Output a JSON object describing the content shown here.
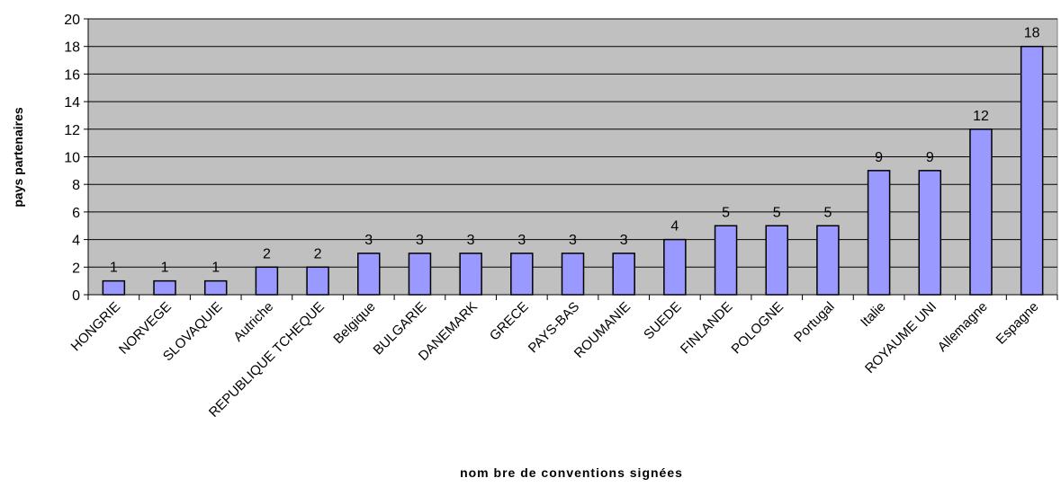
{
  "chart_data": {
    "type": "bar",
    "title": "",
    "xlabel": "nom bre de conventions signées",
    "ylabel": "pays partenaires",
    "ylim": [
      0,
      20
    ],
    "yticks": [
      0,
      2,
      4,
      6,
      8,
      10,
      12,
      14,
      16,
      18,
      20
    ],
    "grid": true,
    "legend": "none",
    "categories": [
      "HONGRIE",
      "NORVEGE",
      "SLOVAQUIE",
      "Autriche",
      "REPUBLIQUE TCHEQUE",
      "Belgique",
      "BULGARIE",
      "DANEMARK",
      "GRECE",
      "PAYS-BAS",
      "ROUMANIE",
      "SUEDE",
      "FINLANDE",
      "POLOGNE",
      "Portugal",
      "Italie",
      "ROYAUME UNI",
      "Allemagne",
      "Espagne"
    ],
    "values": [
      1,
      1,
      1,
      2,
      2,
      3,
      3,
      3,
      3,
      3,
      3,
      4,
      5,
      5,
      5,
      9,
      9,
      12,
      18
    ],
    "colors": {
      "plot_background": "#c0c0c0",
      "bar_fill": "#9999ff",
      "bar_stroke": "#000000",
      "grid": "#000000"
    }
  }
}
